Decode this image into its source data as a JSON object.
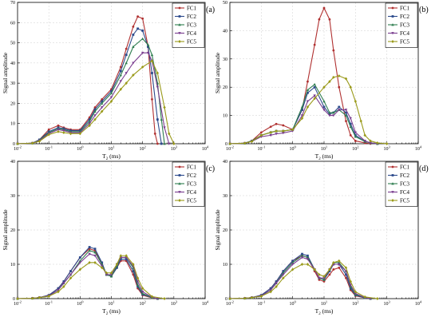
{
  "chart_data": [
    {
      "type": "line",
      "panel_label": "(a)",
      "xlabel_main": "T",
      "xlabel_sub": "2",
      "xlabel_unit": " (ms)",
      "ylabel": "Signal amplitude",
      "xscale": "log",
      "xlim": [
        0.01,
        10000
      ],
      "ylim": [
        0,
        70
      ],
      "yticks": [
        0,
        10,
        20,
        30,
        40,
        50,
        60,
        70
      ],
      "legend_placement": "top-right",
      "series": [
        {
          "name": "FC1",
          "color": "#b03030",
          "x": [
            0.01,
            0.03,
            0.05,
            0.1,
            0.2,
            0.3,
            0.5,
            1,
            2,
            3,
            5,
            10,
            20,
            30,
            50,
            70,
            100,
            150,
            200,
            250,
            300
          ],
          "y": [
            0,
            0.3,
            2,
            7,
            9,
            8,
            7,
            7,
            13,
            18,
            22,
            27,
            38,
            47,
            58,
            63,
            62,
            48,
            22,
            5,
            0
          ]
        },
        {
          "name": "FC2",
          "color": "#2c4a8c",
          "x": [
            0.01,
            0.03,
            0.05,
            0.1,
            0.2,
            0.3,
            0.5,
            1,
            2,
            3,
            5,
            10,
            20,
            30,
            50,
            70,
            100,
            150,
            200,
            300,
            400
          ],
          "y": [
            0,
            0.3,
            2,
            6,
            8,
            7.5,
            6.5,
            6.5,
            12,
            17,
            21,
            26,
            36,
            44,
            54,
            57,
            56,
            48,
            35,
            12,
            0
          ]
        },
        {
          "name": "FC3",
          "color": "#2e7d4f",
          "x": [
            0.01,
            0.03,
            0.05,
            0.1,
            0.2,
            0.3,
            0.5,
            1,
            2,
            3,
            5,
            10,
            20,
            30,
            50,
            100,
            150,
            200,
            300,
            400,
            500
          ],
          "y": [
            0,
            0.3,
            1.8,
            5.5,
            7.5,
            7,
            6,
            6,
            11,
            16,
            20,
            25,
            34,
            40,
            48,
            52,
            49,
            44,
            30,
            12,
            0
          ]
        },
        {
          "name": "FC4",
          "color": "#7a3d8f",
          "x": [
            0.01,
            0.03,
            0.05,
            0.1,
            0.2,
            0.3,
            0.5,
            1,
            2,
            3,
            5,
            10,
            20,
            30,
            50,
            100,
            150,
            200,
            300,
            500,
            700
          ],
          "y": [
            0,
            0.3,
            1.5,
            5,
            7,
            6.5,
            5.5,
            5.5,
            10,
            14,
            18,
            23,
            31,
            35,
            40,
            45,
            45,
            41,
            28,
            8,
            0
          ]
        },
        {
          "name": "FC5",
          "color": "#9a9a1a",
          "x": [
            0.01,
            0.03,
            0.05,
            0.1,
            0.2,
            0.3,
            0.5,
            1,
            2,
            3,
            5,
            10,
            20,
            30,
            50,
            100,
            200,
            300,
            500,
            700,
            1000
          ],
          "y": [
            0,
            0.3,
            1.2,
            4.5,
            6,
            5.5,
            5,
            5,
            9,
            12,
            16,
            21,
            27,
            30,
            34,
            38,
            41,
            35,
            18,
            5,
            0
          ]
        }
      ]
    },
    {
      "type": "line",
      "panel_label": "(b)",
      "xlabel_main": "T",
      "xlabel_sub": "2",
      "xlabel_unit": " (ms)",
      "ylabel": "Signal amplitude",
      "xscale": "log",
      "xlim": [
        0.01,
        10000
      ],
      "ylim": [
        0,
        50
      ],
      "yticks": [
        0,
        10,
        20,
        30,
        40,
        50
      ],
      "legend_placement": "top-right",
      "series": [
        {
          "name": "FC1",
          "color": "#b03030",
          "x": [
            0.01,
            0.03,
            0.05,
            0.1,
            0.2,
            0.3,
            0.5,
            1,
            2,
            3,
            5,
            7,
            10,
            15,
            20,
            30,
            50,
            70,
            100,
            200,
            300
          ],
          "y": [
            0,
            0.2,
            1,
            4,
            6,
            7,
            6.5,
            5,
            12,
            22,
            35,
            44,
            48,
            44,
            33,
            20,
            8,
            3,
            1,
            0.3,
            0
          ]
        },
        {
          "name": "FC2",
          "color": "#2c4a8c",
          "x": [
            0.01,
            0.03,
            0.05,
            0.1,
            0.2,
            0.3,
            0.5,
            1,
            2,
            3,
            5,
            10,
            15,
            20,
            30,
            50,
            70,
            100,
            200,
            300,
            500
          ],
          "y": [
            0,
            0.2,
            1,
            3,
            4,
            4.5,
            4.5,
            5,
            12,
            18,
            20,
            13,
            10.5,
            11,
            13,
            11,
            7,
            3,
            0.8,
            0.3,
            0
          ]
        },
        {
          "name": "FC3",
          "color": "#2e7d4f",
          "x": [
            0.01,
            0.03,
            0.05,
            0.1,
            0.2,
            0.3,
            0.5,
            1,
            2,
            3,
            5,
            10,
            15,
            20,
            30,
            50,
            70,
            100,
            200,
            300,
            500
          ],
          "y": [
            0,
            0.2,
            1,
            3,
            4,
            4.5,
            4.5,
            5,
            13,
            19,
            21,
            15,
            11,
            11,
            12,
            10,
            6,
            2.5,
            0.8,
            0.3,
            0
          ]
        },
        {
          "name": "FC4",
          "color": "#7a3d8f",
          "x": [
            0.01,
            0.03,
            0.05,
            0.1,
            0.2,
            0.3,
            0.5,
            1,
            2,
            3,
            5,
            10,
            15,
            20,
            30,
            50,
            70,
            100,
            200,
            300,
            500
          ],
          "y": [
            0,
            0.2,
            0.8,
            2.5,
            3,
            3.5,
            3.8,
            4.5,
            10,
            15,
            17,
            12,
            10,
            10,
            12,
            12,
            9,
            4,
            1,
            0.3,
            0
          ]
        },
        {
          "name": "FC5",
          "color": "#9a9a1a",
          "x": [
            0.01,
            0.03,
            0.05,
            0.1,
            0.2,
            0.3,
            0.5,
            1,
            2,
            3,
            5,
            10,
            15,
            20,
            30,
            50,
            70,
            100,
            150,
            200,
            300,
            500,
            1000
          ],
          "y": [
            0,
            0.2,
            0.8,
            3,
            4,
            4.5,
            4.5,
            5,
            9,
            13,
            16,
            20,
            22,
            23.5,
            24,
            23,
            20,
            15,
            8,
            3,
            1,
            0.3,
            0
          ]
        }
      ]
    },
    {
      "type": "line",
      "panel_label": "(c)",
      "xlabel_main": "T",
      "xlabel_sub": "2",
      "xlabel_unit": " (ms)",
      "ylabel": "Signal amplitude",
      "xscale": "log",
      "xlim": [
        0.01,
        10000
      ],
      "ylim": [
        0,
        40
      ],
      "yticks": [
        0,
        10,
        20,
        30,
        40
      ],
      "legend_placement": "top-right",
      "series": [
        {
          "name": "FC1",
          "color": "#b03030",
          "x": [
            0.01,
            0.03,
            0.05,
            0.1,
            0.2,
            0.3,
            0.5,
            1,
            2,
            3,
            5,
            7,
            10,
            15,
            20,
            30,
            50,
            70,
            100,
            200,
            300
          ],
          "y": [
            0,
            0.1,
            0.3,
            1,
            3,
            5,
            8,
            12,
            14.5,
            14,
            10,
            7,
            6.5,
            9,
            11,
            11,
            7,
            3,
            1,
            0.2,
            0
          ]
        },
        {
          "name": "FC2",
          "color": "#2c4a8c",
          "x": [
            0.01,
            0.03,
            0.05,
            0.1,
            0.2,
            0.3,
            0.5,
            1,
            2,
            3,
            5,
            7,
            10,
            15,
            20,
            30,
            50,
            70,
            100,
            200,
            300
          ],
          "y": [
            0,
            0.1,
            0.3,
            1,
            3,
            5,
            8,
            12,
            15,
            14.5,
            10.5,
            7,
            6.5,
            9,
            11.5,
            11.5,
            8,
            3.5,
            1.2,
            0.3,
            0
          ]
        },
        {
          "name": "FC3",
          "color": "#2e7d4f",
          "x": [
            0.01,
            0.03,
            0.05,
            0.1,
            0.2,
            0.3,
            0.5,
            1,
            2,
            3,
            5,
            7,
            10,
            15,
            20,
            30,
            50,
            70,
            100,
            200,
            300
          ],
          "y": [
            0,
            0.1,
            0.3,
            0.8,
            2.5,
            4.5,
            7,
            11,
            14,
            13.5,
            10,
            7,
            6.5,
            9.5,
            12,
            12,
            9,
            4,
            1.5,
            0.3,
            0
          ]
        },
        {
          "name": "FC4",
          "color": "#7a3d8f",
          "x": [
            0.01,
            0.03,
            0.05,
            0.1,
            0.2,
            0.3,
            0.5,
            1,
            2,
            3,
            5,
            7,
            10,
            15,
            20,
            30,
            50,
            70,
            100,
            200,
            300
          ],
          "y": [
            0,
            0.1,
            0.3,
            0.8,
            2.5,
            4.5,
            7,
            10.5,
            13,
            12.5,
            9.5,
            7,
            7,
            10,
            12,
            12,
            9.5,
            5,
            2,
            0.4,
            0
          ]
        },
        {
          "name": "FC5",
          "color": "#9a9a1a",
          "x": [
            0.01,
            0.03,
            0.05,
            0.1,
            0.2,
            0.3,
            0.5,
            1,
            2,
            3,
            5,
            7,
            10,
            15,
            20,
            30,
            50,
            70,
            100,
            200,
            500
          ],
          "y": [
            0,
            0.1,
            0.3,
            0.7,
            2,
            3.5,
            6,
            8.5,
            10.5,
            10.5,
            9,
            7.5,
            7.5,
            10,
            12.5,
            12.5,
            10,
            6,
            3,
            0.6,
            0
          ]
        }
      ]
    },
    {
      "type": "line",
      "panel_label": "(d)",
      "xlabel_main": "T",
      "xlabel_sub": "2",
      "xlabel_unit": " (ms)",
      "ylabel": "Signal amplitude",
      "xscale": "log",
      "xlim": [
        0.01,
        10000
      ],
      "ylim": [
        0,
        40
      ],
      "yticks": [
        0,
        10,
        20,
        30,
        40
      ],
      "legend_placement": "top-right",
      "series": [
        {
          "name": "FC1",
          "color": "#b03030",
          "x": [
            0.01,
            0.03,
            0.05,
            0.1,
            0.2,
            0.3,
            0.5,
            1,
            2,
            3,
            5,
            7,
            10,
            15,
            20,
            30,
            50,
            70,
            100,
            200,
            300
          ],
          "y": [
            0,
            0.1,
            0.3,
            1,
            3,
            5,
            8,
            11,
            12.5,
            12,
            8,
            5.5,
            5,
            7,
            8.5,
            9,
            6,
            2.5,
            0.8,
            0.2,
            0
          ]
        },
        {
          "name": "FC2",
          "color": "#2c4a8c",
          "x": [
            0.01,
            0.03,
            0.05,
            0.1,
            0.2,
            0.3,
            0.5,
            1,
            2,
            3,
            5,
            7,
            10,
            15,
            20,
            30,
            50,
            70,
            100,
            200,
            300
          ],
          "y": [
            0,
            0.1,
            0.3,
            1,
            3,
            5,
            8,
            11,
            13,
            12.5,
            8.5,
            6,
            5.5,
            8,
            10,
            10,
            7,
            3,
            1,
            0.2,
            0
          ]
        },
        {
          "name": "FC3",
          "color": "#2e7d4f",
          "x": [
            0.01,
            0.03,
            0.05,
            0.1,
            0.2,
            0.3,
            0.5,
            1,
            2,
            3,
            5,
            7,
            10,
            15,
            20,
            30,
            50,
            70,
            100,
            200,
            300
          ],
          "y": [
            0,
            0.1,
            0.3,
            0.8,
            2.5,
            4.5,
            7.5,
            10.5,
            12.5,
            12,
            8.5,
            6,
            5.5,
            8.5,
            10.5,
            10.5,
            8,
            3.5,
            1.2,
            0.3,
            0
          ]
        },
        {
          "name": "FC4",
          "color": "#7a3d8f",
          "x": [
            0.01,
            0.03,
            0.05,
            0.1,
            0.2,
            0.3,
            0.5,
            1,
            2,
            3,
            5,
            7,
            10,
            15,
            20,
            30,
            50,
            70,
            100,
            200,
            300
          ],
          "y": [
            0,
            0.1,
            0.3,
            0.8,
            2.5,
            4.5,
            7,
            10,
            12,
            11.5,
            8.5,
            6,
            6,
            8.5,
            10,
            10,
            8,
            4,
            1.5,
            0.3,
            0
          ]
        },
        {
          "name": "FC5",
          "color": "#9a9a1a",
          "x": [
            0.01,
            0.03,
            0.05,
            0.1,
            0.2,
            0.3,
            0.5,
            1,
            2,
            3,
            5,
            7,
            10,
            15,
            20,
            30,
            50,
            70,
            100,
            200,
            500
          ],
          "y": [
            0,
            0.1,
            0.3,
            0.7,
            2,
            3.5,
            6,
            8.5,
            10,
            10,
            8.5,
            7,
            6.5,
            8.5,
            10.5,
            11,
            9,
            5,
            2,
            0.5,
            0
          ]
        }
      ]
    }
  ]
}
